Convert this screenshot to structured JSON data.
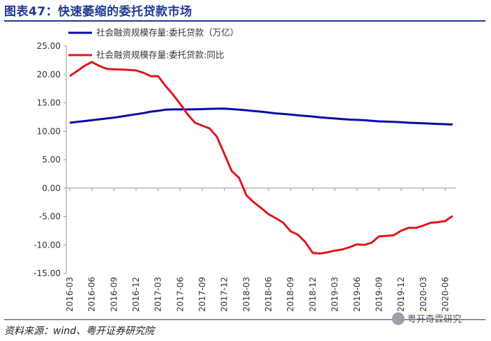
{
  "title": "图表47：快速萎缩的委托贷款市场",
  "source": "资料来源：wind、粤开证券研究院",
  "watermark": "粤开奇霖研究",
  "chart_data": {
    "type": "line",
    "yticks": [
      "25.00",
      "20.00",
      "15.00",
      "10.00",
      "5.00",
      "0.00",
      "-5.00",
      "-10.00",
      "-15.00"
    ],
    "ylim": [
      -15,
      25
    ],
    "xticks": [
      "2016-03",
      "2016-06",
      "2016-09",
      "2016-12",
      "2017-03",
      "2017-06",
      "2017-09",
      "2017-12",
      "2018-03",
      "2018-06",
      "2018-09",
      "2018-12",
      "2019-03",
      "2019-06",
      "2019-09",
      "2019-12",
      "2020-03",
      "2020-06"
    ],
    "x": [
      "2016-03",
      "2016-04",
      "2016-05",
      "2016-06",
      "2016-07",
      "2016-08",
      "2016-09",
      "2016-10",
      "2016-11",
      "2016-12",
      "2017-01",
      "2017-02",
      "2017-03",
      "2017-04",
      "2017-05",
      "2017-06",
      "2017-07",
      "2017-08",
      "2017-09",
      "2017-10",
      "2017-11",
      "2017-12",
      "2018-01",
      "2018-02",
      "2018-03",
      "2018-04",
      "2018-05",
      "2018-06",
      "2018-07",
      "2018-08",
      "2018-09",
      "2018-10",
      "2018-11",
      "2018-12",
      "2019-01",
      "2019-02",
      "2019-03",
      "2019-04",
      "2019-05",
      "2019-06",
      "2019-07",
      "2019-08",
      "2019-09",
      "2019-10",
      "2019-11",
      "2019-12",
      "2020-01",
      "2020-02",
      "2020-03",
      "2020-04",
      "2020-05",
      "2020-06",
      "2020-07"
    ],
    "series": [
      {
        "name": "社会融资规模存量:委托贷款（万亿）",
        "color": "#0a0aa8",
        "values": [
          11.5,
          11.65,
          11.8,
          11.95,
          12.1,
          12.25,
          12.4,
          12.6,
          12.8,
          13.0,
          13.2,
          13.45,
          13.6,
          13.8,
          13.85,
          13.85,
          13.85,
          13.87,
          13.9,
          13.95,
          13.97,
          14.0,
          13.9,
          13.8,
          13.7,
          13.55,
          13.45,
          13.3,
          13.15,
          13.05,
          12.95,
          12.8,
          12.7,
          12.6,
          12.45,
          12.35,
          12.25,
          12.15,
          12.05,
          12.0,
          11.95,
          11.85,
          11.75,
          11.7,
          11.65,
          11.6,
          11.5,
          11.45,
          11.4,
          11.35,
          11.3,
          11.25,
          11.2
        ]
      },
      {
        "name": "社会融资规模存量:委托贷款:同比",
        "color": "#e0161d",
        "values": [
          19.7,
          20.6,
          21.5,
          22.2,
          21.5,
          21.0,
          20.9,
          20.85,
          20.8,
          20.7,
          20.3,
          19.7,
          19.7,
          18.0,
          16.5,
          14.8,
          13.0,
          11.5,
          11.0,
          10.5,
          9.0,
          6.0,
          3.0,
          1.8,
          -1.3,
          -2.5,
          -3.5,
          -4.6,
          -5.3,
          -6.1,
          -7.6,
          -8.2,
          -9.5,
          -11.4,
          -11.5,
          -11.3,
          -11.0,
          -10.8,
          -10.4,
          -9.9,
          -10.0,
          -9.6,
          -8.5,
          -8.4,
          -8.3,
          -7.5,
          -7.0,
          -7.0,
          -6.6,
          -6.1,
          -6.0,
          -5.8,
          -4.9
        ]
      }
    ]
  }
}
